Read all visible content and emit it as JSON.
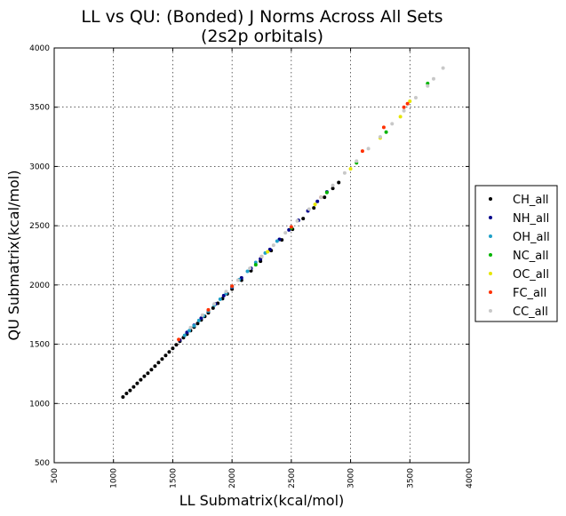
{
  "chart_data": {
    "type": "scatter",
    "title_line1": "LL vs QU: (Bonded) J Norms Across All Sets",
    "title_line2": "(2s2p orbitals)",
    "xlabel": "LL Submatrix(kcal/mol)",
    "ylabel": "QU Submatrix(kcal/mol)",
    "xlim": [
      500,
      4000
    ],
    "ylim": [
      500,
      4000
    ],
    "xticks": [
      "500",
      "1000",
      "1500",
      "2000",
      "2500",
      "3000",
      "3500",
      "4000"
    ],
    "yticks": [
      "500",
      "1000",
      "1500",
      "2000",
      "2500",
      "3000",
      "3500",
      "4000"
    ],
    "grid": true,
    "legend_position": "right-outside",
    "series": [
      {
        "name": "CH_all",
        "color": "#000000",
        "points": [
          [
            1080,
            1055
          ],
          [
            1110,
            1085
          ],
          [
            1140,
            1110
          ],
          [
            1170,
            1140
          ],
          [
            1200,
            1170
          ],
          [
            1230,
            1200
          ],
          [
            1260,
            1230
          ],
          [
            1290,
            1255
          ],
          [
            1320,
            1285
          ],
          [
            1350,
            1315
          ],
          [
            1380,
            1345
          ],
          [
            1410,
            1375
          ],
          [
            1440,
            1405
          ],
          [
            1470,
            1435
          ],
          [
            1500,
            1465
          ],
          [
            1530,
            1495
          ],
          [
            1560,
            1525
          ],
          [
            1590,
            1555
          ],
          [
            1620,
            1585
          ],
          [
            1650,
            1615
          ],
          [
            1680,
            1645
          ],
          [
            1710,
            1675
          ],
          [
            1740,
            1705
          ],
          [
            1770,
            1735
          ],
          [
            1800,
            1765
          ],
          [
            1840,
            1805
          ],
          [
            1880,
            1845
          ],
          [
            1920,
            1885
          ],
          [
            1960,
            1925
          ],
          [
            2000,
            1965
          ],
          [
            2080,
            2040
          ],
          [
            2160,
            2120
          ],
          [
            2240,
            2200
          ],
          [
            2330,
            2290
          ],
          [
            2420,
            2380
          ],
          [
            2510,
            2470
          ],
          [
            2600,
            2560
          ],
          [
            2690,
            2650
          ],
          [
            2780,
            2740
          ],
          [
            2850,
            2815
          ],
          [
            2900,
            2865
          ]
        ]
      },
      {
        "name": "NH_all",
        "color": "#00008b",
        "points": [
          [
            1560,
            1535
          ],
          [
            1620,
            1600
          ],
          [
            1680,
            1660
          ],
          [
            1740,
            1720
          ],
          [
            1800,
            1780
          ],
          [
            1860,
            1840
          ],
          [
            1930,
            1910
          ],
          [
            2000,
            1980
          ],
          [
            2080,
            2060
          ],
          [
            2160,
            2140
          ],
          [
            2240,
            2220
          ],
          [
            2320,
            2300
          ],
          [
            2400,
            2385
          ],
          [
            2480,
            2465
          ],
          [
            2560,
            2545
          ],
          [
            2640,
            2625
          ],
          [
            2720,
            2705
          ],
          [
            2800,
            2785
          ]
        ]
      },
      {
        "name": "OH_all",
        "color": "#1ea0c8",
        "points": [
          [
            1600,
            1575
          ],
          [
            1640,
            1615
          ],
          [
            1680,
            1655
          ],
          [
            1720,
            1700
          ],
          [
            1760,
            1740
          ],
          [
            1800,
            1780
          ],
          [
            1850,
            1830
          ],
          [
            1900,
            1880
          ],
          [
            1950,
            1930
          ],
          [
            2000,
            1985
          ],
          [
            2060,
            2045
          ],
          [
            2130,
            2115
          ],
          [
            2200,
            2190
          ],
          [
            2280,
            2270
          ],
          [
            2380,
            2370
          ]
        ]
      },
      {
        "name": "NC_all",
        "color": "#00b400",
        "points": [
          [
            2200,
            2170
          ],
          [
            2500,
            2480
          ],
          [
            2800,
            2780
          ],
          [
            3050,
            3030
          ],
          [
            3300,
            3290
          ],
          [
            3650,
            3700
          ]
        ]
      },
      {
        "name": "OC_all",
        "color": "#e6e600",
        "points": [
          [
            2300,
            2280
          ],
          [
            2700,
            2680
          ],
          [
            3000,
            2980
          ],
          [
            3250,
            3240
          ],
          [
            3420,
            3420
          ],
          [
            3500,
            3550
          ]
        ]
      },
      {
        "name": "FC_all",
        "color": "#ff3000",
        "points": [
          [
            1550,
            1540
          ],
          [
            1800,
            1790
          ],
          [
            2000,
            1990
          ],
          [
            2250,
            2240
          ],
          [
            2500,
            2490
          ],
          [
            2750,
            2740
          ],
          [
            3100,
            3130
          ],
          [
            3280,
            3330
          ],
          [
            3450,
            3500
          ],
          [
            3480,
            3530
          ]
        ]
      },
      {
        "name": "CC_all",
        "color": "#c8c8c8",
        "points": [
          [
            1650,
            1640
          ],
          [
            1750,
            1745
          ],
          [
            1850,
            1840
          ],
          [
            1950,
            1945
          ],
          [
            2050,
            2040
          ],
          [
            2150,
            2140
          ],
          [
            2250,
            2240
          ],
          [
            2350,
            2335
          ],
          [
            2450,
            2440
          ],
          [
            2550,
            2540
          ],
          [
            2650,
            2640
          ],
          [
            2750,
            2740
          ],
          [
            2850,
            2840
          ],
          [
            2950,
            2945
          ],
          [
            3050,
            3045
          ],
          [
            3150,
            3150
          ],
          [
            3250,
            3250
          ],
          [
            3350,
            3360
          ],
          [
            3450,
            3470
          ],
          [
            3550,
            3580
          ],
          [
            3650,
            3680
          ],
          [
            3700,
            3740
          ],
          [
            3780,
            3830
          ]
        ]
      }
    ]
  }
}
